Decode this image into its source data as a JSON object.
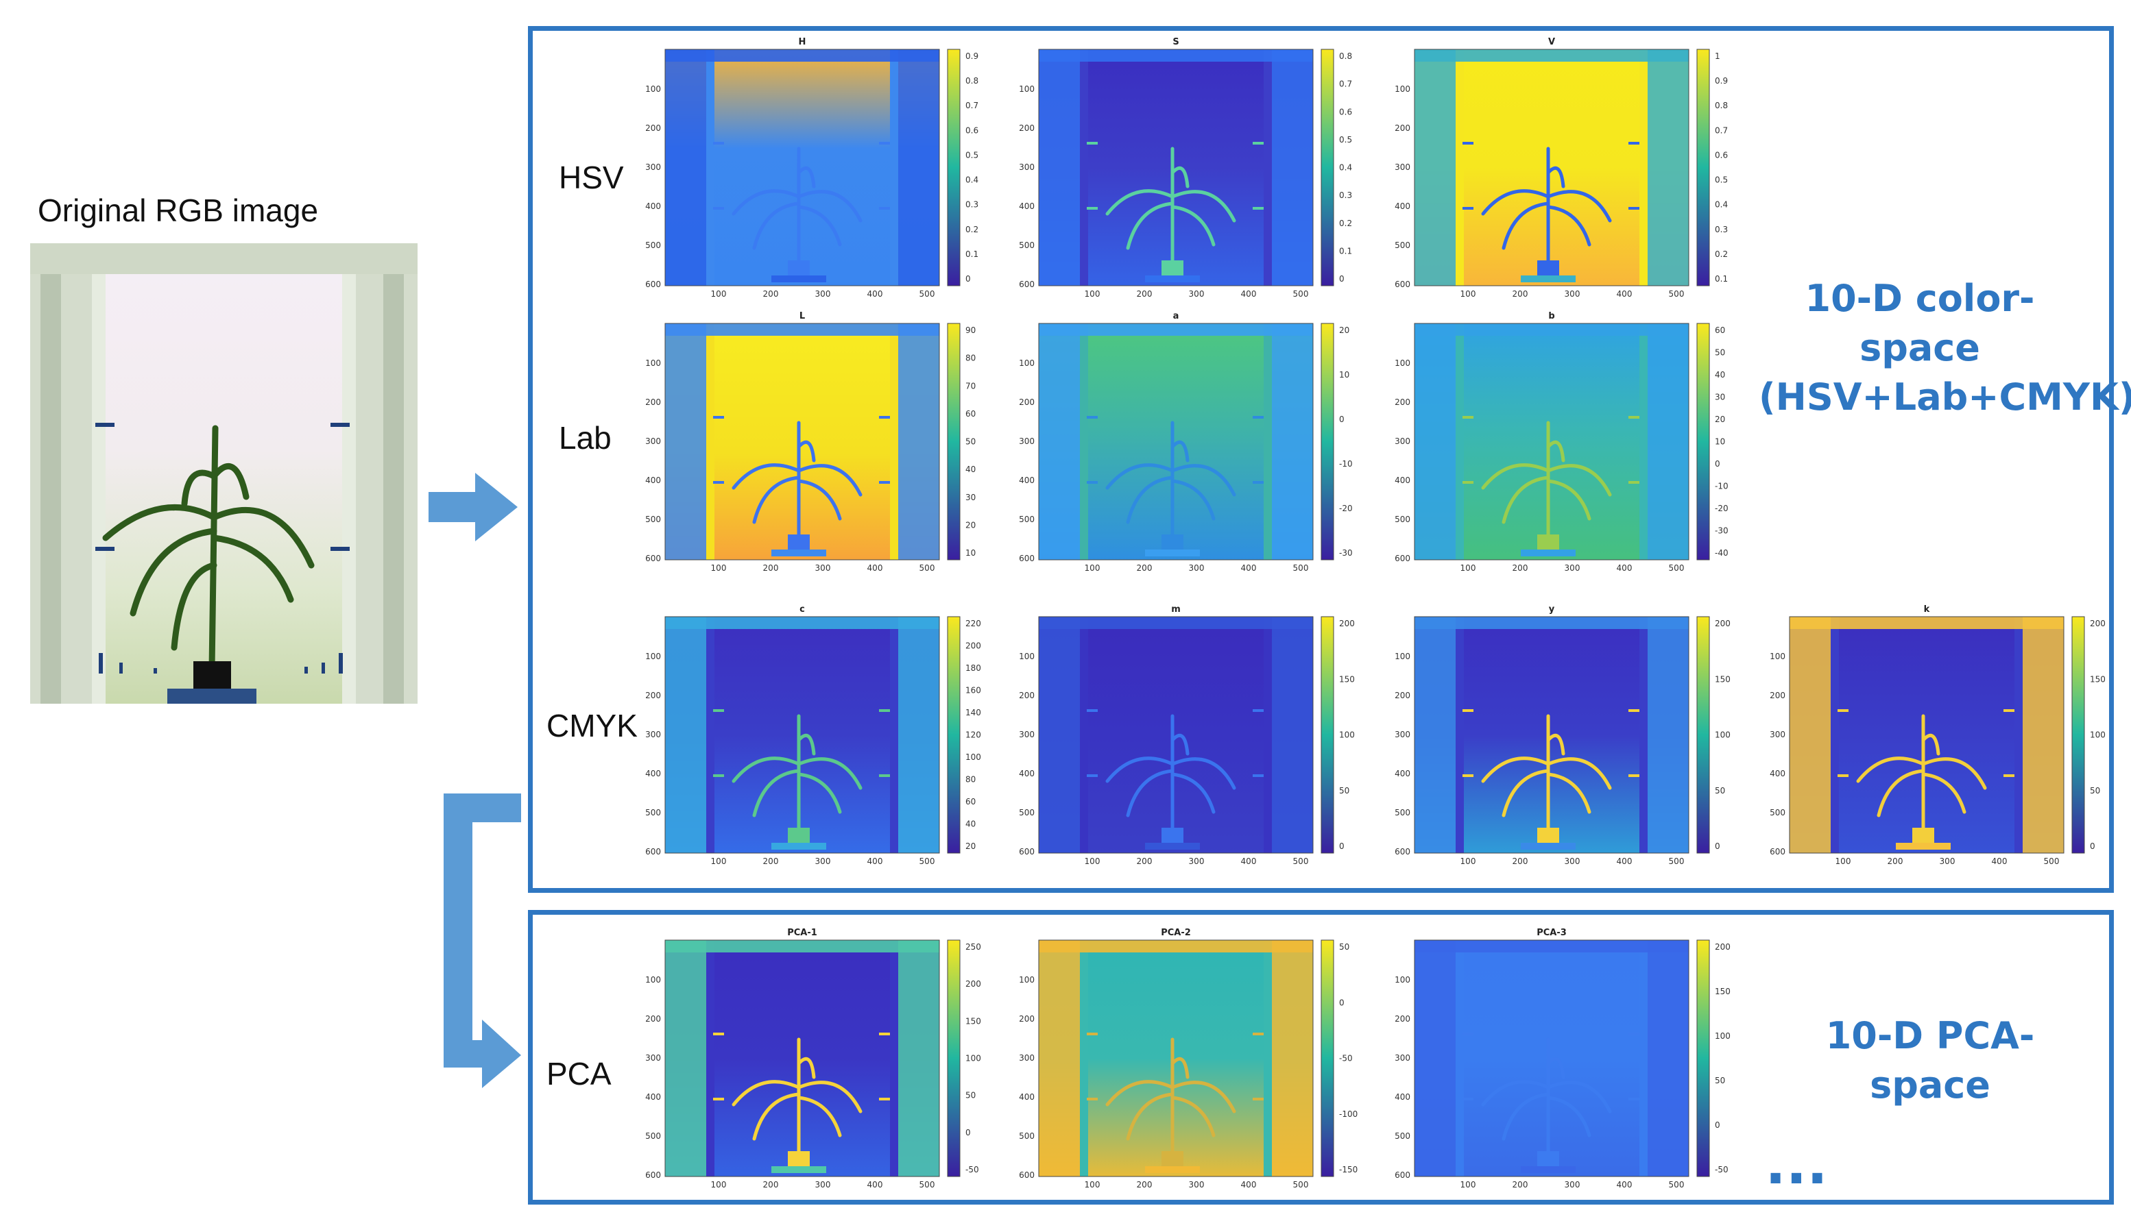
{
  "original": {
    "title": "Original RGB image"
  },
  "rows": {
    "hsv_label": "HSV",
    "lab_label": "Lab",
    "cmyk_label": "CMYK",
    "pca_label": "PCA"
  },
  "summaries": {
    "colorspace_line1": "10-D color-space",
    "colorspace_line2": "(HSV+Lab+CMYK)",
    "pca": "10-D PCA-space",
    "ellipsis": "..."
  },
  "axes": {
    "yticks": [
      "100",
      "200",
      "300",
      "400",
      "500",
      "600"
    ],
    "xticks": [
      "100",
      "200",
      "300",
      "400",
      "500"
    ]
  },
  "panels": [
    {
      "title": "H",
      "scheme": "H",
      "cbar": [
        "0.9",
        "0.8",
        "0.7",
        "0.6",
        "0.5",
        "0.4",
        "0.3",
        "0.2",
        "0.1",
        "0"
      ]
    },
    {
      "title": "S",
      "scheme": "S",
      "cbar": [
        "0.8",
        "0.7",
        "0.6",
        "0.5",
        "0.4",
        "0.3",
        "0.2",
        "0.1",
        "0"
      ]
    },
    {
      "title": "V",
      "scheme": "V",
      "cbar": [
        "1",
        "0.9",
        "0.8",
        "0.7",
        "0.6",
        "0.5",
        "0.4",
        "0.3",
        "0.2",
        "0.1"
      ]
    },
    {
      "title": "L",
      "scheme": "L",
      "cbar": [
        "90",
        "80",
        "70",
        "60",
        "50",
        "40",
        "30",
        "20",
        "10"
      ]
    },
    {
      "title": "a",
      "scheme": "a",
      "cbar": [
        "20",
        "10",
        "0",
        "-10",
        "-20",
        "-30"
      ]
    },
    {
      "title": "b",
      "scheme": "b",
      "cbar": [
        "60",
        "50",
        "40",
        "30",
        "20",
        "10",
        "0",
        "-10",
        "-20",
        "-30",
        "-40"
      ]
    },
    {
      "title": "c",
      "scheme": "c",
      "cbar": [
        "220",
        "200",
        "180",
        "160",
        "140",
        "120",
        "100",
        "80",
        "60",
        "40",
        "20"
      ]
    },
    {
      "title": "m",
      "scheme": "m",
      "cbar": [
        "200",
        "150",
        "100",
        "50",
        "0"
      ]
    },
    {
      "title": "y",
      "scheme": "y",
      "cbar": [
        "200",
        "150",
        "100",
        "50",
        "0"
      ]
    },
    {
      "title": "k",
      "scheme": "k",
      "cbar": [
        "200",
        "150",
        "100",
        "50",
        "0"
      ]
    },
    {
      "title": "PCA-1",
      "scheme": "p1",
      "cbar": [
        "250",
        "200",
        "150",
        "100",
        "50",
        "0",
        "-50"
      ]
    },
    {
      "title": "PCA-2",
      "scheme": "p2",
      "cbar": [
        "50",
        "0",
        "-50",
        "-100",
        "-150"
      ]
    },
    {
      "title": "PCA-3",
      "scheme": "p3",
      "cbar": [
        "200",
        "150",
        "100",
        "50",
        "0",
        "-50"
      ]
    }
  ],
  "colors": {
    "frame": "#2f77c2",
    "arrow": "#5b9bd5"
  }
}
